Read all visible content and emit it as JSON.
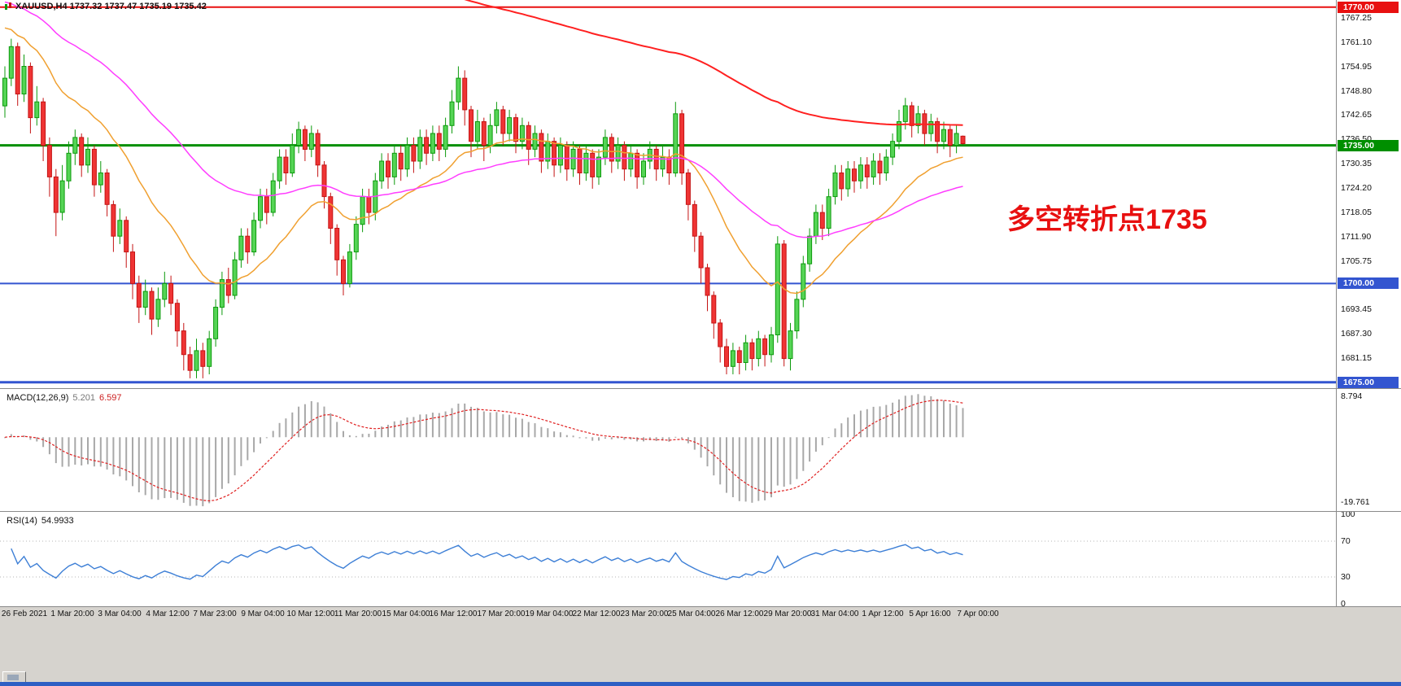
{
  "header": {
    "symbol_ohlc": "XAUUSD,H4  1737.32 1737.47 1735.19 1735.42"
  },
  "annotation": {
    "text": "多空转折点1735",
    "color": "#e81010"
  },
  "price_axis_labels": [
    "1767.25",
    "1761.10",
    "1754.95",
    "1748.80",
    "1742.65",
    "1736.50",
    "1730.35",
    "1724.20",
    "1718.05",
    "1711.90",
    "1705.75",
    "1693.45",
    "1687.30",
    "1681.15"
  ],
  "time_axis_labels": [
    "26 Feb 2021",
    "1 Mar 20:00",
    "3 Mar 04:00",
    "4 Mar 12:00",
    "7 Mar 23:00",
    "9 Mar 04:00",
    "10 Mar 12:00",
    "11 Mar 20:00",
    "15 Mar 04:00",
    "16 Mar 12:00",
    "17 Mar 20:00",
    "19 Mar 04:00",
    "22 Mar 12:00",
    "23 Mar 20:00",
    "25 Mar 04:00",
    "26 Mar 12:00",
    "29 Mar 20:00",
    "31 Mar 04:00",
    "1 Apr 12:00",
    "5 Apr 16:00",
    "7 Apr 00:00"
  ],
  "chart_data": [
    {
      "type": "candlestick",
      "symbol": "XAUUSD",
      "timeframe": "H4",
      "ohlc_current": {
        "open": 1737.32,
        "high": 1737.47,
        "low": 1735.19,
        "close": 1735.42
      },
      "ylim": [
        1673.5,
        1771.8
      ],
      "bull_color": "#55d455",
      "bear_color": "#ef3434",
      "horizontal_lines": [
        {
          "price": 1770.0,
          "color": "#e81010",
          "badge": "1770.00",
          "width": 2
        },
        {
          "price": 1735.0,
          "color": "#008f00",
          "badge": "1735.00",
          "width": 3
        },
        {
          "price": 1700.0,
          "color": "#3355d0",
          "badge": "1700.00",
          "width": 2
        },
        {
          "price": 1675.0,
          "color": "#3355d0",
          "badge": "1675.00",
          "width": 3
        }
      ],
      "moving_averages": [
        {
          "name": "ma-fast-orange",
          "period": 21,
          "seed": 1766,
          "color": "#f0a030",
          "width": 1.5
        },
        {
          "name": "ma-mid-magenta",
          "period": 55,
          "seed": 1772,
          "color": "#ff3dff",
          "width": 1.5
        },
        {
          "name": "ma-slow-red",
          "period": 150,
          "seed": 1855,
          "color": "#ff2020",
          "width": 2
        }
      ],
      "candles_ohlc": [
        [
          1745,
          1755,
          1742,
          1752
        ],
        [
          1752,
          1762,
          1750,
          1760
        ],
        [
          1760,
          1761,
          1745,
          1748
        ],
        [
          1748,
          1758,
          1746,
          1755
        ],
        [
          1755,
          1756,
          1738,
          1742
        ],
        [
          1742,
          1750,
          1740,
          1746
        ],
        [
          1746,
          1747,
          1731,
          1735
        ],
        [
          1735,
          1737,
          1722,
          1727
        ],
        [
          1727,
          1729,
          1712,
          1718
        ],
        [
          1718,
          1730,
          1716,
          1726
        ],
        [
          1726,
          1736,
          1724,
          1733
        ],
        [
          1733,
          1739,
          1730,
          1737
        ],
        [
          1737,
          1738,
          1727,
          1730
        ],
        [
          1730,
          1737,
          1728,
          1734
        ],
        [
          1734,
          1735,
          1722,
          1725
        ],
        [
          1725,
          1731,
          1723,
          1728
        ],
        [
          1728,
          1729,
          1717,
          1720
        ],
        [
          1720,
          1721,
          1708,
          1712
        ],
        [
          1712,
          1719,
          1710,
          1716
        ],
        [
          1716,
          1717,
          1704,
          1708
        ],
        [
          1708,
          1710,
          1696,
          1700
        ],
        [
          1700,
          1702,
          1690,
          1694
        ],
        [
          1694,
          1701,
          1692,
          1698
        ],
        [
          1698,
          1699,
          1687,
          1691
        ],
        [
          1691,
          1699,
          1689,
          1696
        ],
        [
          1696,
          1703,
          1694,
          1700
        ],
        [
          1700,
          1702,
          1692,
          1695
        ],
        [
          1695,
          1696,
          1684,
          1688
        ],
        [
          1688,
          1690,
          1678,
          1682
        ],
        [
          1682,
          1684,
          1676,
          1678
        ],
        [
          1678,
          1686,
          1676,
          1683
        ],
        [
          1683,
          1685,
          1676,
          1679
        ],
        [
          1679,
          1688,
          1677,
          1686
        ],
        [
          1686,
          1696,
          1684,
          1694
        ],
        [
          1694,
          1703,
          1692,
          1701
        ],
        [
          1701,
          1704,
          1695,
          1697
        ],
        [
          1697,
          1708,
          1696,
          1706
        ],
        [
          1706,
          1714,
          1704,
          1712
        ],
        [
          1712,
          1714,
          1705,
          1708
        ],
        [
          1708,
          1718,
          1707,
          1716
        ],
        [
          1716,
          1724,
          1714,
          1722
        ],
        [
          1722,
          1724,
          1715,
          1718
        ],
        [
          1718,
          1728,
          1717,
          1726
        ],
        [
          1726,
          1734,
          1724,
          1732
        ],
        [
          1732,
          1734,
          1725,
          1728
        ],
        [
          1728,
          1738,
          1727,
          1735
        ],
        [
          1735,
          1741,
          1733,
          1739
        ],
        [
          1739,
          1740,
          1731,
          1734
        ],
        [
          1734,
          1740,
          1732,
          1738
        ],
        [
          1738,
          1739,
          1727,
          1730
        ],
        [
          1730,
          1731,
          1719,
          1722
        ],
        [
          1722,
          1723,
          1710,
          1714
        ],
        [
          1714,
          1715,
          1702,
          1706
        ],
        [
          1706,
          1707,
          1697,
          1700
        ],
        [
          1700,
          1710,
          1699,
          1708
        ],
        [
          1708,
          1717,
          1706,
          1715
        ],
        [
          1715,
          1724,
          1713,
          1722
        ],
        [
          1722,
          1724,
          1715,
          1718
        ],
        [
          1718,
          1728,
          1716,
          1726
        ],
        [
          1726,
          1733,
          1724,
          1731
        ],
        [
          1731,
          1733,
          1724,
          1727
        ],
        [
          1727,
          1735,
          1725,
          1733
        ],
        [
          1733,
          1735,
          1726,
          1729
        ],
        [
          1729,
          1737,
          1727,
          1735
        ],
        [
          1735,
          1737,
          1728,
          1731
        ],
        [
          1731,
          1739,
          1729,
          1737
        ],
        [
          1737,
          1739,
          1730,
          1733
        ],
        [
          1733,
          1740,
          1731,
          1738
        ],
        [
          1738,
          1740,
          1731,
          1734
        ],
        [
          1734,
          1742,
          1732,
          1740
        ],
        [
          1740,
          1749,
          1738,
          1746
        ],
        [
          1746,
          1755,
          1744,
          1752
        ],
        [
          1752,
          1754,
          1740,
          1744
        ],
        [
          1744,
          1745,
          1732,
          1736
        ],
        [
          1736,
          1744,
          1734,
          1741
        ],
        [
          1741,
          1742,
          1731,
          1735
        ],
        [
          1735,
          1743,
          1733,
          1740
        ],
        [
          1740,
          1746,
          1738,
          1744
        ],
        [
          1744,
          1745,
          1735,
          1738
        ],
        [
          1738,
          1744,
          1736,
          1742
        ],
        [
          1742,
          1743,
          1733,
          1736
        ],
        [
          1736,
          1742,
          1734,
          1740
        ],
        [
          1740,
          1741,
          1730,
          1734
        ],
        [
          1734,
          1740,
          1732,
          1738
        ],
        [
          1738,
          1739,
          1728,
          1731
        ],
        [
          1731,
          1738,
          1729,
          1736
        ],
        [
          1736,
          1737,
          1727,
          1730
        ],
        [
          1730,
          1737,
          1728,
          1735
        ],
        [
          1735,
          1736,
          1726,
          1729
        ],
        [
          1729,
          1736,
          1727,
          1734
        ],
        [
          1734,
          1735,
          1725,
          1728
        ],
        [
          1728,
          1735,
          1726,
          1733
        ],
        [
          1733,
          1734,
          1724,
          1727
        ],
        [
          1727,
          1734,
          1725,
          1732
        ],
        [
          1732,
          1739,
          1730,
          1737
        ],
        [
          1737,
          1738,
          1728,
          1731
        ],
        [
          1731,
          1737,
          1729,
          1735
        ],
        [
          1735,
          1736,
          1726,
          1729
        ],
        [
          1729,
          1735,
          1727,
          1733
        ],
        [
          1733,
          1734,
          1724,
          1727
        ],
        [
          1727,
          1733,
          1725,
          1731
        ],
        [
          1731,
          1736,
          1729,
          1734
        ],
        [
          1734,
          1735,
          1726,
          1729
        ],
        [
          1729,
          1735,
          1727,
          1732
        ],
        [
          1732,
          1734,
          1725,
          1728
        ],
        [
          1728,
          1746,
          1727,
          1743
        ],
        [
          1743,
          1744,
          1725,
          1728
        ],
        [
          1728,
          1729,
          1716,
          1720
        ],
        [
          1720,
          1721,
          1708,
          1712
        ],
        [
          1712,
          1713,
          1700,
          1704
        ],
        [
          1704,
          1705,
          1693,
          1697
        ],
        [
          1697,
          1698,
          1686,
          1690
        ],
        [
          1690,
          1691,
          1680,
          1684
        ],
        [
          1684,
          1686,
          1677,
          1679
        ],
        [
          1679,
          1685,
          1677,
          1683
        ],
        [
          1683,
          1684,
          1677,
          1680
        ],
        [
          1680,
          1687,
          1678,
          1685
        ],
        [
          1685,
          1686,
          1678,
          1681
        ],
        [
          1681,
          1688,
          1679,
          1686
        ],
        [
          1686,
          1687,
          1679,
          1682
        ],
        [
          1682,
          1689,
          1680,
          1687
        ],
        [
          1687,
          1712,
          1685,
          1710
        ],
        [
          1710,
          1711,
          1679,
          1681
        ],
        [
          1681,
          1690,
          1678,
          1688
        ],
        [
          1688,
          1698,
          1686,
          1696
        ],
        [
          1696,
          1707,
          1694,
          1705
        ],
        [
          1705,
          1714,
          1703,
          1712
        ],
        [
          1712,
          1720,
          1710,
          1718
        ],
        [
          1718,
          1720,
          1711,
          1714
        ],
        [
          1714,
          1724,
          1712,
          1722
        ],
        [
          1722,
          1730,
          1720,
          1728
        ],
        [
          1728,
          1730,
          1721,
          1724
        ],
        [
          1724,
          1731,
          1722,
          1729
        ],
        [
          1729,
          1731,
          1723,
          1726
        ],
        [
          1726,
          1732,
          1724,
          1730
        ],
        [
          1730,
          1732,
          1724,
          1727
        ],
        [
          1727,
          1733,
          1725,
          1731
        ],
        [
          1731,
          1733,
          1725,
          1728
        ],
        [
          1728,
          1734,
          1726,
          1732
        ],
        [
          1732,
          1738,
          1730,
          1736
        ],
        [
          1736,
          1744,
          1734,
          1741
        ],
        [
          1741,
          1747,
          1739,
          1745
        ],
        [
          1745,
          1746,
          1737,
          1740
        ],
        [
          1740,
          1745,
          1738,
          1743
        ],
        [
          1743,
          1744,
          1735,
          1738
        ],
        [
          1738,
          1743,
          1736,
          1741
        ],
        [
          1741,
          1742,
          1733,
          1736
        ],
        [
          1736,
          1741,
          1734,
          1739
        ],
        [
          1739,
          1740,
          1732,
          1735
        ],
        [
          1735,
          1740,
          1733,
          1738
        ],
        [
          1737.32,
          1737.47,
          1735.19,
          1735.42
        ]
      ]
    },
    {
      "type": "macd",
      "label": "MACD(12,26,9)",
      "value_main": "5.201",
      "value_signal": "6.597",
      "fast": 12,
      "slow": 26,
      "signal": 9,
      "axis_max": "8.794",
      "axis_min": "-19.761",
      "histogram_color": "#a8a8a8",
      "signal_color": "#e02020"
    },
    {
      "type": "rsi",
      "label": "RSI(14)",
      "value": "54.9933",
      "period": 14,
      "levels": [
        70,
        30
      ],
      "axis_labels": [
        "100",
        "70",
        "30",
        "0"
      ],
      "axis_values": [
        100,
        70,
        30,
        0
      ],
      "line_color": "#3d7fd6"
    }
  ]
}
